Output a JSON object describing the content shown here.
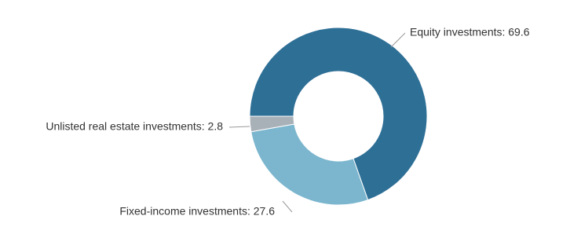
{
  "chart_data": {
    "type": "pie",
    "values": [
      69.6,
      27.6,
      2.8
    ],
    "value_labels": [
      "Equity investments: 69.6",
      "Fixed-income investments: 27.6",
      "Unlisted real estate investments: 2.8"
    ],
    "colors": [
      "#2e6f96",
      "#7bb6ce",
      "#a9b1b8"
    ]
  }
}
